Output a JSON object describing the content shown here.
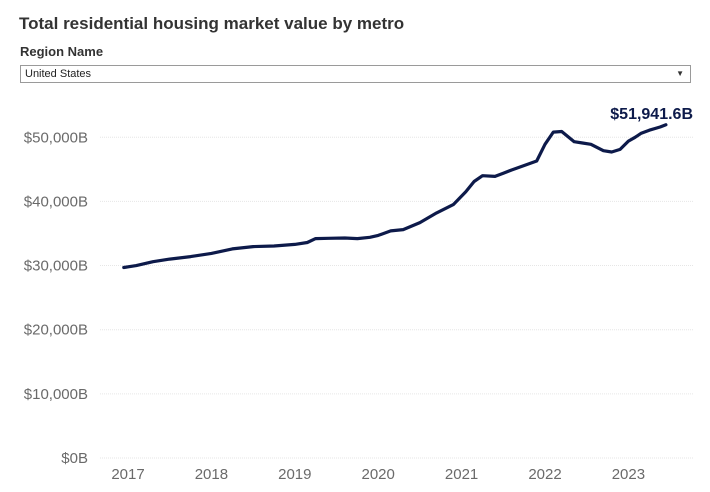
{
  "title": "Total residential housing market value by metro",
  "filter": {
    "label": "Region Name",
    "selected": "United States",
    "arrow_icon": "caret-down-icon"
  },
  "colors": {
    "line": "#0d1a4a",
    "grid": "#e6e6e6",
    "tick_text": "#6a6a6a"
  },
  "chart_data": {
    "type": "line",
    "title": "",
    "xlabel": "",
    "ylabel": "",
    "ylim": [
      0,
      55000
    ],
    "y_ticks": [
      0,
      10000,
      20000,
      30000,
      40000,
      50000
    ],
    "y_tick_labels": [
      "$0B",
      "$10,000B",
      "$20,000B",
      "$30,000B",
      "$40,000B",
      "$50,000B"
    ],
    "x_ticks": [
      2017,
      2018,
      2019,
      2020,
      2021,
      2022,
      2023
    ],
    "x_tick_labels": [
      "2017",
      "2018",
      "2019",
      "2020",
      "2021",
      "2022",
      "2023"
    ],
    "grid": "horizontal",
    "end_label": "$51,941.6B",
    "series": [
      {
        "x": [
          2016.95,
          2017.1,
          2017.3,
          2017.5,
          2017.75,
          2018.0,
          2018.25,
          2018.5,
          2018.75,
          2019.0,
          2019.15,
          2019.25,
          2019.4,
          2019.6,
          2019.75,
          2019.9,
          2020.0,
          2020.15,
          2020.3,
          2020.5,
          2020.7,
          2020.9,
          2021.05,
          2021.15,
          2021.25,
          2021.4,
          2021.5,
          2021.6,
          2021.75,
          2021.9,
          2022.0,
          2022.1,
          2022.2,
          2022.35,
          2022.45,
          2022.55,
          2022.7,
          2022.8,
          2022.9,
          2023.0,
          2023.08,
          2023.15,
          2023.25,
          2023.38,
          2023.45
        ],
        "y": [
          29700,
          30000,
          30600,
          31000,
          31400,
          31900,
          32600,
          32950,
          33050,
          33300,
          33600,
          34200,
          34250,
          34300,
          34200,
          34400,
          34700,
          35400,
          35600,
          36700,
          38200,
          39500,
          41500,
          43100,
          44000,
          43900,
          44400,
          44900,
          45600,
          46300,
          48900,
          50800,
          50900,
          49300,
          49100,
          48900,
          47900,
          47700,
          48100,
          49400,
          50000,
          50600,
          51100,
          51600,
          51942
        ]
      }
    ]
  }
}
